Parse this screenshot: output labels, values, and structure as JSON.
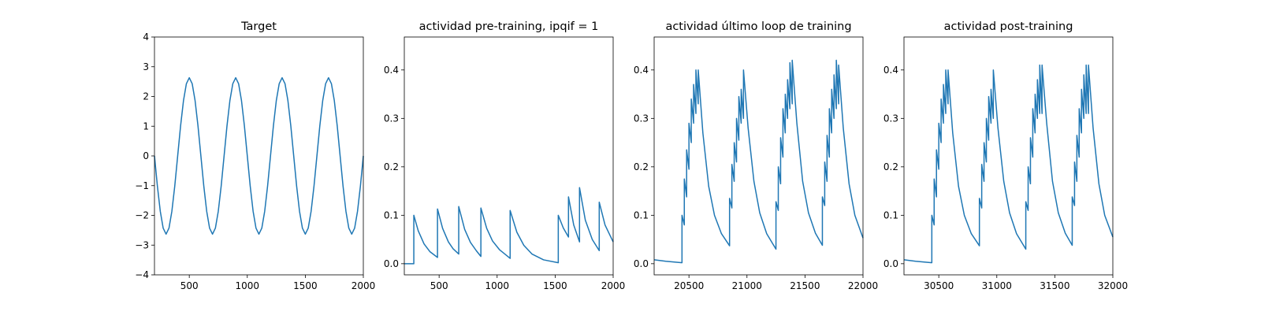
{
  "chart_data": [
    {
      "type": "line",
      "title": "Target",
      "color": "#1f77b4",
      "x": [
        200,
        225,
        250,
        275,
        300,
        325,
        350,
        375,
        400,
        425,
        450,
        475,
        500,
        525,
        550,
        575,
        600,
        625,
        650,
        675,
        700,
        725,
        750,
        775,
        800,
        825,
        850,
        875,
        900,
        925,
        950,
        975,
        1000,
        1025,
        1050,
        1075,
        1100,
        1125,
        1150,
        1175,
        1200,
        1225,
        1250,
        1275,
        1300,
        1325,
        1350,
        1375,
        1400,
        1425,
        1450,
        1475,
        1500,
        1525,
        1550,
        1575,
        1600,
        1625,
        1650,
        1675,
        1700,
        1725,
        1750,
        1775,
        1800,
        1825,
        1850,
        1875,
        1900,
        1925,
        1950,
        1975,
        2000
      ],
      "values": [
        0,
        -1.01,
        -1.86,
        -2.43,
        -2.63,
        -2.43,
        -1.86,
        -1.01,
        0,
        1.01,
        1.86,
        2.43,
        2.63,
        2.43,
        1.86,
        1.01,
        0,
        -1.01,
        -1.86,
        -2.43,
        -2.63,
        -2.43,
        -1.86,
        -1.01,
        0,
        1.01,
        1.86,
        2.43,
        2.63,
        2.43,
        1.86,
        1.01,
        0,
        -1.01,
        -1.86,
        -2.43,
        -2.63,
        -2.43,
        -1.86,
        -1.01,
        0,
        1.01,
        1.86,
        2.43,
        2.63,
        2.43,
        1.86,
        1.01,
        0,
        -1.01,
        -1.86,
        -2.43,
        -2.63,
        -2.43,
        -1.86,
        -1.01,
        0,
        1.01,
        1.86,
        2.43,
        2.63,
        2.43,
        1.86,
        1.01,
        0,
        -1.01,
        -1.86,
        -2.43,
        -2.63,
        -2.43,
        -1.86,
        -1.01,
        0
      ],
      "xlim": [
        200,
        2000
      ],
      "xticks": [
        500,
        1000,
        1500,
        2000
      ],
      "ylim": [
        -4,
        4
      ],
      "yticks": [
        {
          "value": -4,
          "label": "−4"
        },
        {
          "value": -3,
          "label": "−3"
        },
        {
          "value": -2,
          "label": "−2"
        },
        {
          "value": -1,
          "label": "−1"
        },
        0,
        1,
        2,
        3,
        4
      ]
    },
    {
      "type": "line",
      "title": "actividad pre-training, ipqif = 1",
      "color": "#1f77b4",
      "x": [
        200,
        282,
        282,
        320,
        370,
        420,
        486,
        486,
        530,
        580,
        620,
        669,
        669,
        720,
        770,
        820,
        860,
        860,
        910,
        960,
        1020,
        1112,
        1112,
        1170,
        1230,
        1300,
        1400,
        1527,
        1527,
        1570,
        1615,
        1615,
        1660,
        1710,
        1710,
        1760,
        1820,
        1880,
        1880,
        1930,
        2000
      ],
      "values": [
        0,
        0,
        0.1,
        0.068,
        0.041,
        0.025,
        0.013,
        0.113,
        0.073,
        0.045,
        0.031,
        0.02,
        0.118,
        0.071,
        0.044,
        0.027,
        0.015,
        0.115,
        0.073,
        0.047,
        0.029,
        0.011,
        0.11,
        0.065,
        0.038,
        0.02,
        0.008,
        0.002,
        0.1,
        0.074,
        0.055,
        0.138,
        0.08,
        0.045,
        0.157,
        0.09,
        0.05,
        0.027,
        0.127,
        0.08,
        0.045
      ],
      "xlim": [
        200,
        2000
      ],
      "xticks": [
        500,
        1000,
        1500,
        2000
      ],
      "ylim": [
        -0.023,
        0.468
      ],
      "yticks": [
        {
          "value": 0,
          "label": "0.0"
        },
        0.1,
        0.2,
        0.3,
        0.4
      ]
    },
    {
      "type": "line",
      "title": "actividad último loop de training",
      "color": "#1f77b4",
      "x": [
        20200,
        20300,
        20440,
        20440,
        20460,
        20460,
        20480,
        20480,
        20500,
        20500,
        20520,
        20520,
        20540,
        20540,
        20560,
        20560,
        20580,
        20580,
        20620,
        20670,
        20720,
        20780,
        20850,
        20850,
        20870,
        20870,
        20890,
        20890,
        20910,
        20910,
        20930,
        20930,
        20950,
        20950,
        20970,
        20970,
        21010,
        21060,
        21110,
        21170,
        21250,
        21250,
        21270,
        21270,
        21290,
        21290,
        21310,
        21310,
        21330,
        21330,
        21350,
        21350,
        21370,
        21370,
        21390,
        21390,
        21430,
        21480,
        21530,
        21590,
        21650,
        21650,
        21670,
        21670,
        21690,
        21690,
        21710,
        21710,
        21730,
        21730,
        21750,
        21750,
        21770,
        21770,
        21790,
        21790,
        21830,
        21880,
        21930,
        22000
      ],
      "values": [
        0.008,
        0.005,
        0.002,
        0.1,
        0.08,
        0.175,
        0.138,
        0.235,
        0.195,
        0.29,
        0.25,
        0.34,
        0.29,
        0.37,
        0.31,
        0.4,
        0.33,
        0.4,
        0.27,
        0.16,
        0.1,
        0.062,
        0.037,
        0.135,
        0.115,
        0.205,
        0.17,
        0.25,
        0.21,
        0.3,
        0.255,
        0.345,
        0.29,
        0.36,
        0.3,
        0.4,
        0.28,
        0.17,
        0.105,
        0.062,
        0.03,
        0.128,
        0.11,
        0.2,
        0.165,
        0.26,
        0.22,
        0.32,
        0.27,
        0.35,
        0.3,
        0.38,
        0.32,
        0.415,
        0.33,
        0.42,
        0.29,
        0.17,
        0.105,
        0.063,
        0.038,
        0.138,
        0.12,
        0.21,
        0.17,
        0.265,
        0.22,
        0.32,
        0.27,
        0.36,
        0.3,
        0.39,
        0.32,
        0.42,
        0.33,
        0.41,
        0.28,
        0.165,
        0.1,
        0.053
      ],
      "xlim": [
        20200,
        22000
      ],
      "xticks": [
        20500,
        21000,
        21500,
        22000
      ],
      "ylim": [
        -0.023,
        0.468
      ],
      "yticks": [
        {
          "value": 0,
          "label": "0.0"
        },
        0.1,
        0.2,
        0.3,
        0.4
      ]
    },
    {
      "type": "line",
      "title": "actividad post-training",
      "color": "#1f77b4",
      "x": [
        30200,
        30300,
        30440,
        30440,
        30460,
        30460,
        30480,
        30480,
        30500,
        30500,
        30520,
        30520,
        30540,
        30540,
        30560,
        30560,
        30580,
        30580,
        30620,
        30670,
        30720,
        30780,
        30850,
        30850,
        30870,
        30870,
        30890,
        30890,
        30910,
        30910,
        30930,
        30930,
        30950,
        30950,
        30970,
        30970,
        31010,
        31060,
        31110,
        31170,
        31250,
        31250,
        31270,
        31270,
        31290,
        31290,
        31310,
        31310,
        31330,
        31330,
        31350,
        31350,
        31370,
        31370,
        31390,
        31390,
        31430,
        31480,
        31530,
        31590,
        31650,
        31650,
        31670,
        31670,
        31690,
        31690,
        31710,
        31710,
        31730,
        31730,
        31750,
        31750,
        31770,
        31770,
        31790,
        31790,
        31830,
        31880,
        31930,
        32000
      ],
      "values": [
        0.008,
        0.005,
        0.002,
        0.1,
        0.08,
        0.175,
        0.138,
        0.235,
        0.195,
        0.29,
        0.25,
        0.34,
        0.29,
        0.37,
        0.31,
        0.4,
        0.33,
        0.4,
        0.27,
        0.16,
        0.1,
        0.062,
        0.037,
        0.135,
        0.115,
        0.205,
        0.17,
        0.25,
        0.21,
        0.3,
        0.255,
        0.345,
        0.29,
        0.36,
        0.3,
        0.4,
        0.28,
        0.17,
        0.105,
        0.062,
        0.03,
        0.128,
        0.11,
        0.2,
        0.165,
        0.26,
        0.22,
        0.32,
        0.27,
        0.35,
        0.3,
        0.38,
        0.31,
        0.41,
        0.31,
        0.41,
        0.29,
        0.17,
        0.105,
        0.063,
        0.038,
        0.138,
        0.12,
        0.21,
        0.17,
        0.265,
        0.22,
        0.32,
        0.27,
        0.36,
        0.3,
        0.39,
        0.31,
        0.41,
        0.31,
        0.41,
        0.28,
        0.165,
        0.1,
        0.055
      ],
      "xlim": [
        30200,
        32000
      ],
      "xticks": [
        30500,
        31000,
        31500,
        32000
      ],
      "ylim": [
        -0.023,
        0.468
      ],
      "yticks": [
        {
          "value": 0,
          "label": "0.0"
        },
        0.1,
        0.2,
        0.3,
        0.4
      ]
    }
  ]
}
